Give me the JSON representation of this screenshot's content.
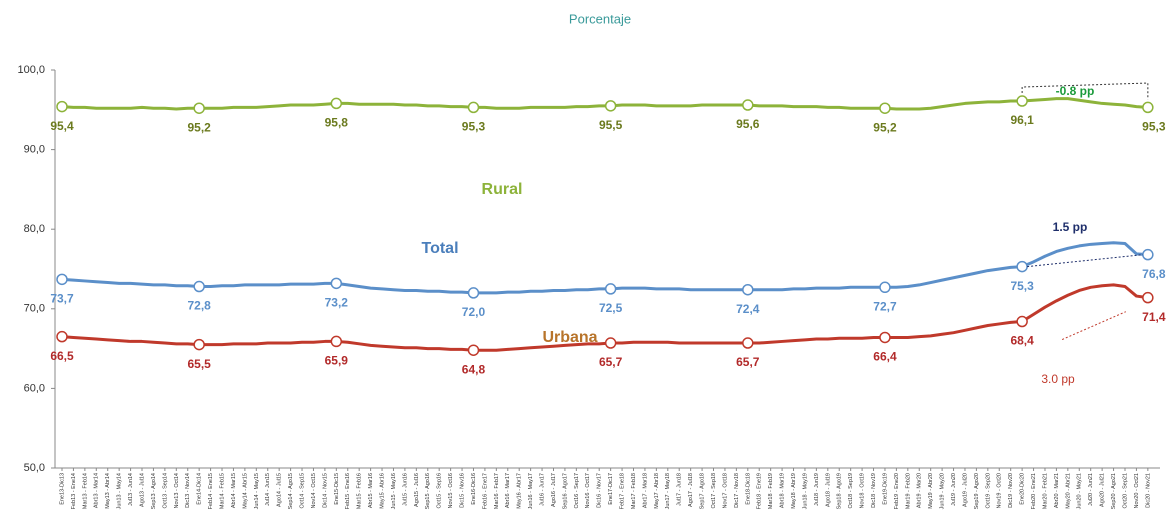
{
  "chart_data": {
    "type": "line",
    "title": "Porcentaje",
    "categories": [
      "Ene13-Dic13",
      "Feb13 - Ene14",
      "Mar13 - Feb14",
      "Abr13 - Mar14",
      "May13 - Abr14",
      "Jun13 - May14",
      "Jul13 - Jun14",
      "Ago13 - Jul14",
      "Sep13 - Ago14",
      "Oct13 - Sep14",
      "Nov13 - Oct14",
      "Dic13 - Nov14",
      "Ene14-Dic14",
      "Feb14 - Ene15",
      "Mar14 - Feb15",
      "Abr14 - Mar15",
      "May14 - Abr15",
      "Jun14 - May15",
      "Jul14 - Jun15",
      "Ago14 - Jul15",
      "Sep14 - Ago15",
      "Oct14 - Sep15",
      "Nov14 - Oct15",
      "Dic14 - Nov15",
      "Ene15-Dic15",
      "Feb15 - Ene16",
      "Mar15 - Feb16",
      "Abr15 - Mar16",
      "May15 - Abr16",
      "Jun15 - May16",
      "Jul15 - Jun16",
      "Ago15 - Jul16",
      "Sep15 - Ago16",
      "Oct15 - Sep16",
      "Nov15 - Oct16",
      "Dic15 - Nov16",
      "Ene16-Dic16",
      "Feb16 - Ene17",
      "Mar16 - Feb17",
      "Abr16 - Mar17",
      "May16 - Abr17",
      "Jun16 - May17",
      "Jul16 - Jun17",
      "Ago16 - Jul17",
      "Sep16 - Ago17",
      "Oct16 - Sep17",
      "Nov16 - Oct17",
      "Dic16 - Nov17",
      "Ene17-Dic17",
      "Feb17 - Ene18",
      "Mar17 - Feb18",
      "Abr17 - Mar18",
      "May17 - Abr18",
      "Jun17 - May18",
      "Jul17 - Jun18",
      "Ago17 - Jul18",
      "Sep17 - Ago18",
      "Oct17 - Sep18",
      "Nov17 - Oct18",
      "Dic17 - Nov18",
      "Ene18-Dic18",
      "Feb18 - Ene19",
      "Mar18 - Feb19",
      "Abr18 - Mar19",
      "May18 - Abr19",
      "Jun18 - May19",
      "Jul18 - Jun19",
      "Ago18 - Jul19",
      "Sep18 - Ago19",
      "Oct18 - Sep19",
      "Nov18 - Oct19",
      "Dic18 - Nov19",
      "Ene19-Dic19",
      "Feb19 - Ene20",
      "Mar19 - Feb20",
      "Abr19 - Mar20",
      "May19 - Abr20",
      "Jun19 - May20",
      "Jul19 - Jun20",
      "Ago19 - Jul20",
      "Sep19 - Ago20",
      "Oct19 - Sep20",
      "Nov19 - Oct20",
      "Dic19 - Nov20",
      "Ene20-Dic20",
      "Feb20 - Ene21",
      "Mar20 - Feb21",
      "Abr20 - Mar21",
      "May20 - Abr21",
      "Jun20 - May21",
      "Jul20 - Jun21",
      "Ago20 - Jul21",
      "Sep20 - Ago21",
      "Oct20 - Sep21",
      "Nov20 - Oct21",
      "Dic20 - Nov21"
    ],
    "series": [
      {
        "name": "Rural",
        "color": "#8db33a",
        "label_color": "#6b7a1e",
        "name_color": "#8db33a",
        "values": [
          95.4,
          95.3,
          95.3,
          95.2,
          95.2,
          95.2,
          95.2,
          95.3,
          95.2,
          95.2,
          95.1,
          95.2,
          95.2,
          95.2,
          95.2,
          95.3,
          95.3,
          95.3,
          95.4,
          95.5,
          95.6,
          95.6,
          95.6,
          95.7,
          95.8,
          95.8,
          95.7,
          95.7,
          95.7,
          95.7,
          95.6,
          95.6,
          95.5,
          95.5,
          95.4,
          95.4,
          95.3,
          95.3,
          95.2,
          95.2,
          95.2,
          95.3,
          95.3,
          95.3,
          95.3,
          95.4,
          95.4,
          95.5,
          95.5,
          95.6,
          95.6,
          95.6,
          95.5,
          95.5,
          95.5,
          95.5,
          95.6,
          95.6,
          95.6,
          95.6,
          95.6,
          95.5,
          95.5,
          95.5,
          95.4,
          95.4,
          95.4,
          95.3,
          95.3,
          95.2,
          95.2,
          95.2,
          95.2,
          95.1,
          95.1,
          95.1,
          95.2,
          95.4,
          95.6,
          95.8,
          95.9,
          96.0,
          96.0,
          96.1,
          96.1,
          96.2,
          96.3,
          96.4,
          96.4,
          96.2,
          96.0,
          95.8,
          95.7,
          95.6,
          95.4,
          95.3
        ],
        "value_labels": [
          "95,4",
          null,
          null,
          null,
          null,
          null,
          null,
          null,
          null,
          null,
          null,
          null,
          "95,2",
          null,
          null,
          null,
          null,
          null,
          null,
          null,
          null,
          null,
          null,
          null,
          "95,8",
          null,
          null,
          null,
          null,
          null,
          null,
          null,
          null,
          null,
          null,
          null,
          "95,3",
          null,
          null,
          null,
          null,
          null,
          null,
          null,
          null,
          null,
          null,
          null,
          "95,5",
          null,
          null,
          null,
          null,
          null,
          null,
          null,
          null,
          null,
          null,
          null,
          "95,6",
          null,
          null,
          null,
          null,
          null,
          null,
          null,
          null,
          null,
          null,
          null,
          "95,2",
          null,
          null,
          null,
          null,
          null,
          null,
          null,
          null,
          null,
          null,
          null,
          "96,1",
          null,
          null,
          null,
          null,
          null,
          null,
          null,
          null,
          null,
          null,
          "95,3"
        ]
      },
      {
        "name": "Total",
        "color": "#5b8fc9",
        "label_color": "#5b8fc9",
        "name_color": "#4a7ebb",
        "values": [
          73.7,
          73.6,
          73.5,
          73.4,
          73.3,
          73.2,
          73.2,
          73.1,
          73.0,
          73.0,
          72.9,
          72.9,
          72.8,
          72.8,
          72.9,
          72.9,
          73.0,
          73.0,
          73.0,
          73.0,
          73.1,
          73.1,
          73.1,
          73.2,
          73.2,
          73.0,
          72.8,
          72.6,
          72.5,
          72.4,
          72.3,
          72.3,
          72.2,
          72.2,
          72.1,
          72.1,
          72.0,
          72.0,
          72.0,
          72.1,
          72.1,
          72.2,
          72.2,
          72.3,
          72.3,
          72.4,
          72.4,
          72.5,
          72.5,
          72.6,
          72.6,
          72.6,
          72.5,
          72.5,
          72.5,
          72.4,
          72.4,
          72.4,
          72.4,
          72.4,
          72.4,
          72.4,
          72.4,
          72.4,
          72.5,
          72.5,
          72.6,
          72.6,
          72.6,
          72.7,
          72.7,
          72.7,
          72.7,
          72.7,
          72.8,
          73.0,
          73.3,
          73.6,
          73.9,
          74.2,
          74.5,
          74.8,
          75.0,
          75.2,
          75.3,
          75.9,
          76.6,
          77.2,
          77.6,
          77.9,
          78.1,
          78.2,
          78.3,
          78.2,
          76.9,
          76.8
        ],
        "value_labels": [
          "73,7",
          null,
          null,
          null,
          null,
          null,
          null,
          null,
          null,
          null,
          null,
          null,
          "72,8",
          null,
          null,
          null,
          null,
          null,
          null,
          null,
          null,
          null,
          null,
          null,
          "73,2",
          null,
          null,
          null,
          null,
          null,
          null,
          null,
          null,
          null,
          null,
          null,
          "72,0",
          null,
          null,
          null,
          null,
          null,
          null,
          null,
          null,
          null,
          null,
          null,
          "72,5",
          null,
          null,
          null,
          null,
          null,
          null,
          null,
          null,
          null,
          null,
          null,
          "72,4",
          null,
          null,
          null,
          null,
          null,
          null,
          null,
          null,
          null,
          null,
          null,
          "72,7",
          null,
          null,
          null,
          null,
          null,
          null,
          null,
          null,
          null,
          null,
          null,
          "75,3",
          null,
          null,
          null,
          null,
          null,
          null,
          null,
          null,
          null,
          null,
          "76,8"
        ]
      },
      {
        "name": "Urbana",
        "color": "#c0392b",
        "label_color": "#b22a2a",
        "name_color": "#b8742a",
        "values": [
          66.5,
          66.4,
          66.3,
          66.2,
          66.1,
          66.0,
          65.9,
          65.9,
          65.8,
          65.7,
          65.6,
          65.6,
          65.5,
          65.5,
          65.5,
          65.6,
          65.6,
          65.6,
          65.7,
          65.7,
          65.7,
          65.8,
          65.8,
          65.9,
          65.9,
          65.8,
          65.6,
          65.4,
          65.3,
          65.2,
          65.1,
          65.1,
          65.0,
          65.0,
          64.9,
          64.9,
          64.8,
          64.8,
          64.8,
          64.9,
          65.0,
          65.1,
          65.2,
          65.3,
          65.4,
          65.5,
          65.6,
          65.6,
          65.7,
          65.7,
          65.8,
          65.8,
          65.8,
          65.8,
          65.7,
          65.7,
          65.7,
          65.7,
          65.7,
          65.7,
          65.7,
          65.7,
          65.8,
          65.9,
          66.0,
          66.1,
          66.2,
          66.2,
          66.3,
          66.3,
          66.3,
          66.4,
          66.4,
          66.4,
          66.4,
          66.5,
          66.6,
          66.8,
          67.0,
          67.3,
          67.6,
          67.9,
          68.1,
          68.3,
          68.4,
          69.3,
          70.2,
          71.0,
          71.7,
          72.3,
          72.7,
          72.9,
          73.0,
          72.8,
          71.6,
          71.4
        ],
        "value_labels": [
          "66,5",
          null,
          null,
          null,
          null,
          null,
          null,
          null,
          null,
          null,
          null,
          null,
          "65,5",
          null,
          null,
          null,
          null,
          null,
          null,
          null,
          null,
          null,
          null,
          null,
          "65,9",
          null,
          null,
          null,
          null,
          null,
          null,
          null,
          null,
          null,
          null,
          null,
          "64,8",
          null,
          null,
          null,
          null,
          null,
          null,
          null,
          null,
          null,
          null,
          null,
          "65,7",
          null,
          null,
          null,
          null,
          null,
          null,
          null,
          null,
          null,
          null,
          null,
          "65,7",
          null,
          null,
          null,
          null,
          null,
          null,
          null,
          null,
          null,
          null,
          null,
          "66,4",
          null,
          null,
          null,
          null,
          null,
          null,
          null,
          null,
          null,
          null,
          null,
          "68,4",
          null,
          null,
          null,
          null,
          null,
          null,
          null,
          null,
          null,
          null,
          "71,4"
        ]
      }
    ],
    "annotations": [
      {
        "text": "-0.8 pp",
        "color": "#1a9a3a"
      },
      {
        "text": "1.5 pp",
        "color": "#1f2f6b"
      },
      {
        "text": "3.0 pp",
        "color": "#c0392b"
      }
    ],
    "ylim": [
      50,
      100
    ],
    "yticks": [
      {
        "value": 50,
        "label": "50,0"
      },
      {
        "value": 60,
        "label": "60,0"
      },
      {
        "value": 70,
        "label": "70,0"
      },
      {
        "value": 80,
        "label": "80,0"
      },
      {
        "value": 90,
        "label": "90,0"
      },
      {
        "value": 100,
        "label": "100,0"
      }
    ],
    "grid": false
  }
}
